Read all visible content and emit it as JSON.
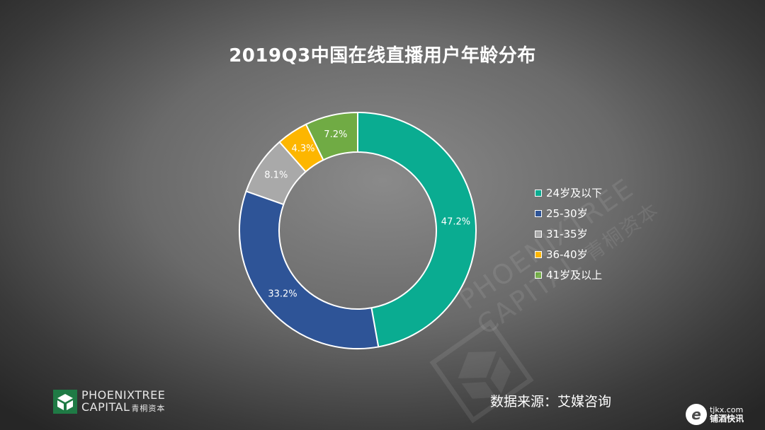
{
  "title": "2019Q3中国在线直播用户年龄分布",
  "chart_data": {
    "type": "pie",
    "title": "2019Q3中国在线直播用户年龄分布",
    "categories": [
      "24岁及以下",
      "25-30岁",
      "31-35岁",
      "36-40岁",
      "41岁及以上"
    ],
    "values": [
      47.2,
      33.2,
      8.1,
      4.3,
      7.2
    ],
    "labels": [
      "47.2%",
      "33.2%",
      "8.1%",
      "4.3%",
      "7.2%"
    ],
    "colors": [
      "#0aac91",
      "#2e5497",
      "#a9a9a9",
      "#fdb600",
      "#70ab44"
    ],
    "donut": true,
    "legend_position": "right"
  },
  "legend": [
    {
      "label": "24岁及以下",
      "color": "#0aac91"
    },
    {
      "label": "25-30岁",
      "color": "#2e5497"
    },
    {
      "label": "31-35岁",
      "color": "#a9a9a9"
    },
    {
      "label": "36-40岁",
      "color": "#fdb600"
    },
    {
      "label": "41岁及以上",
      "color": "#70ab44"
    }
  ],
  "source": "数据来源：艾媒咨询",
  "logo": {
    "line1": "PHOENIXTREE",
    "line2": "CAPITAL",
    "line2_cn": "青桐资本"
  },
  "watermark": {
    "line1": "PHOENIXTREE",
    "line2": "CAPITAL",
    "cn": "青桐资本"
  },
  "corner": {
    "domain": "tjkx.com",
    "name": "铺酒快讯"
  }
}
